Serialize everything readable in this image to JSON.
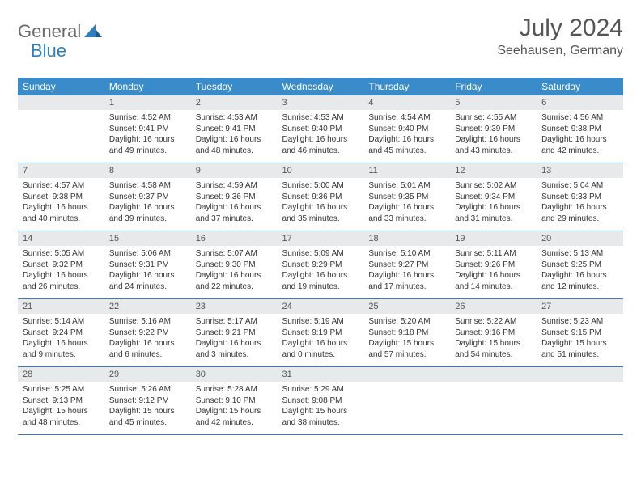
{
  "logo": {
    "part1": "General",
    "part2": "Blue"
  },
  "title": "July 2024",
  "location": "Seehausen, Germany",
  "colors": {
    "headerBg": "#3a8bc9",
    "headerText": "#ffffff",
    "dayNumBg": "#e7e9eb",
    "rowBorder": "#2d7fc1",
    "logoAccent": "#2d7fc1",
    "logoGray": "#6a6a6a",
    "bodyText": "#333333",
    "titleText": "#555555"
  },
  "weekdays": [
    "Sunday",
    "Monday",
    "Tuesday",
    "Wednesday",
    "Thursday",
    "Friday",
    "Saturday"
  ],
  "weeks": [
    [
      {
        "num": "",
        "sunrise": "",
        "sunset": "",
        "daylight": ""
      },
      {
        "num": "1",
        "sunrise": "Sunrise: 4:52 AM",
        "sunset": "Sunset: 9:41 PM",
        "daylight": "Daylight: 16 hours and 49 minutes."
      },
      {
        "num": "2",
        "sunrise": "Sunrise: 4:53 AM",
        "sunset": "Sunset: 9:41 PM",
        "daylight": "Daylight: 16 hours and 48 minutes."
      },
      {
        "num": "3",
        "sunrise": "Sunrise: 4:53 AM",
        "sunset": "Sunset: 9:40 PM",
        "daylight": "Daylight: 16 hours and 46 minutes."
      },
      {
        "num": "4",
        "sunrise": "Sunrise: 4:54 AM",
        "sunset": "Sunset: 9:40 PM",
        "daylight": "Daylight: 16 hours and 45 minutes."
      },
      {
        "num": "5",
        "sunrise": "Sunrise: 4:55 AM",
        "sunset": "Sunset: 9:39 PM",
        "daylight": "Daylight: 16 hours and 43 minutes."
      },
      {
        "num": "6",
        "sunrise": "Sunrise: 4:56 AM",
        "sunset": "Sunset: 9:38 PM",
        "daylight": "Daylight: 16 hours and 42 minutes."
      }
    ],
    [
      {
        "num": "7",
        "sunrise": "Sunrise: 4:57 AM",
        "sunset": "Sunset: 9:38 PM",
        "daylight": "Daylight: 16 hours and 40 minutes."
      },
      {
        "num": "8",
        "sunrise": "Sunrise: 4:58 AM",
        "sunset": "Sunset: 9:37 PM",
        "daylight": "Daylight: 16 hours and 39 minutes."
      },
      {
        "num": "9",
        "sunrise": "Sunrise: 4:59 AM",
        "sunset": "Sunset: 9:36 PM",
        "daylight": "Daylight: 16 hours and 37 minutes."
      },
      {
        "num": "10",
        "sunrise": "Sunrise: 5:00 AM",
        "sunset": "Sunset: 9:36 PM",
        "daylight": "Daylight: 16 hours and 35 minutes."
      },
      {
        "num": "11",
        "sunrise": "Sunrise: 5:01 AM",
        "sunset": "Sunset: 9:35 PM",
        "daylight": "Daylight: 16 hours and 33 minutes."
      },
      {
        "num": "12",
        "sunrise": "Sunrise: 5:02 AM",
        "sunset": "Sunset: 9:34 PM",
        "daylight": "Daylight: 16 hours and 31 minutes."
      },
      {
        "num": "13",
        "sunrise": "Sunrise: 5:04 AM",
        "sunset": "Sunset: 9:33 PM",
        "daylight": "Daylight: 16 hours and 29 minutes."
      }
    ],
    [
      {
        "num": "14",
        "sunrise": "Sunrise: 5:05 AM",
        "sunset": "Sunset: 9:32 PM",
        "daylight": "Daylight: 16 hours and 26 minutes."
      },
      {
        "num": "15",
        "sunrise": "Sunrise: 5:06 AM",
        "sunset": "Sunset: 9:31 PM",
        "daylight": "Daylight: 16 hours and 24 minutes."
      },
      {
        "num": "16",
        "sunrise": "Sunrise: 5:07 AM",
        "sunset": "Sunset: 9:30 PM",
        "daylight": "Daylight: 16 hours and 22 minutes."
      },
      {
        "num": "17",
        "sunrise": "Sunrise: 5:09 AM",
        "sunset": "Sunset: 9:29 PM",
        "daylight": "Daylight: 16 hours and 19 minutes."
      },
      {
        "num": "18",
        "sunrise": "Sunrise: 5:10 AM",
        "sunset": "Sunset: 9:27 PM",
        "daylight": "Daylight: 16 hours and 17 minutes."
      },
      {
        "num": "19",
        "sunrise": "Sunrise: 5:11 AM",
        "sunset": "Sunset: 9:26 PM",
        "daylight": "Daylight: 16 hours and 14 minutes."
      },
      {
        "num": "20",
        "sunrise": "Sunrise: 5:13 AM",
        "sunset": "Sunset: 9:25 PM",
        "daylight": "Daylight: 16 hours and 12 minutes."
      }
    ],
    [
      {
        "num": "21",
        "sunrise": "Sunrise: 5:14 AM",
        "sunset": "Sunset: 9:24 PM",
        "daylight": "Daylight: 16 hours and 9 minutes."
      },
      {
        "num": "22",
        "sunrise": "Sunrise: 5:16 AM",
        "sunset": "Sunset: 9:22 PM",
        "daylight": "Daylight: 16 hours and 6 minutes."
      },
      {
        "num": "23",
        "sunrise": "Sunrise: 5:17 AM",
        "sunset": "Sunset: 9:21 PM",
        "daylight": "Daylight: 16 hours and 3 minutes."
      },
      {
        "num": "24",
        "sunrise": "Sunrise: 5:19 AM",
        "sunset": "Sunset: 9:19 PM",
        "daylight": "Daylight: 16 hours and 0 minutes."
      },
      {
        "num": "25",
        "sunrise": "Sunrise: 5:20 AM",
        "sunset": "Sunset: 9:18 PM",
        "daylight": "Daylight: 15 hours and 57 minutes."
      },
      {
        "num": "26",
        "sunrise": "Sunrise: 5:22 AM",
        "sunset": "Sunset: 9:16 PM",
        "daylight": "Daylight: 15 hours and 54 minutes."
      },
      {
        "num": "27",
        "sunrise": "Sunrise: 5:23 AM",
        "sunset": "Sunset: 9:15 PM",
        "daylight": "Daylight: 15 hours and 51 minutes."
      }
    ],
    [
      {
        "num": "28",
        "sunrise": "Sunrise: 5:25 AM",
        "sunset": "Sunset: 9:13 PM",
        "daylight": "Daylight: 15 hours and 48 minutes."
      },
      {
        "num": "29",
        "sunrise": "Sunrise: 5:26 AM",
        "sunset": "Sunset: 9:12 PM",
        "daylight": "Daylight: 15 hours and 45 minutes."
      },
      {
        "num": "30",
        "sunrise": "Sunrise: 5:28 AM",
        "sunset": "Sunset: 9:10 PM",
        "daylight": "Daylight: 15 hours and 42 minutes."
      },
      {
        "num": "31",
        "sunrise": "Sunrise: 5:29 AM",
        "sunset": "Sunset: 9:08 PM",
        "daylight": "Daylight: 15 hours and 38 minutes."
      },
      {
        "num": "",
        "sunrise": "",
        "sunset": "",
        "daylight": ""
      },
      {
        "num": "",
        "sunrise": "",
        "sunset": "",
        "daylight": ""
      },
      {
        "num": "",
        "sunrise": "",
        "sunset": "",
        "daylight": ""
      }
    ]
  ]
}
